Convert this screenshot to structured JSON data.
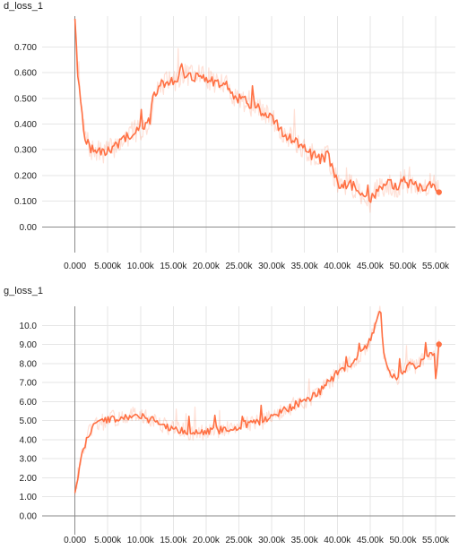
{
  "panels": [
    {
      "title": "d_loss_1"
    },
    {
      "title": "g_loss_1"
    }
  ],
  "colors": {
    "series": "#ff7043",
    "grid": "#e6e6e6",
    "axis": "#8a8a8a",
    "text": "#212121"
  },
  "chart_data": [
    {
      "type": "line",
      "title": "d_loss_1",
      "xlabel": "",
      "ylabel": "",
      "xlim": [
        -5000,
        58000
      ],
      "ylim": [
        -0.1,
        0.82
      ],
      "xticks": [
        0,
        5000,
        10000,
        15000,
        20000,
        25000,
        30000,
        35000,
        40000,
        45000,
        50000,
        55000
      ],
      "xtick_labels": [
        "0.000",
        "5.000k",
        "10.00k",
        "15.00k",
        "20.00k",
        "25.00k",
        "30.00k",
        "35.00k",
        "40.00k",
        "45.00k",
        "50.00k",
        "55.00k"
      ],
      "yticks": [
        0,
        0.1,
        0.2,
        0.3,
        0.4,
        0.5,
        0.6,
        0.7
      ],
      "ytick_labels": [
        "0.00",
        "0.100",
        "0.200",
        "0.300",
        "0.400",
        "0.500",
        "0.600",
        "0.700"
      ],
      "grid": true,
      "series": [
        {
          "x": [
            0,
            300,
            600,
            1000,
            1500,
            2000,
            2500,
            3000,
            4000,
            5000,
            6000,
            7000,
            8000,
            9000,
            10000,
            11000,
            11500,
            12000,
            13000,
            14000,
            15000,
            16000,
            17000,
            18000,
            19000,
            20000,
            21000,
            22000,
            23000,
            24000,
            25000,
            26000,
            27000,
            28000,
            29000,
            30000,
            31000,
            32000,
            33000,
            34000,
            35000,
            36000,
            37000,
            38000,
            38500,
            39000,
            40000,
            41000,
            42000,
            43000,
            44000,
            45000,
            46000,
            47000,
            48000,
            49000,
            50000,
            51000,
            52000,
            53000,
            54000,
            55000,
            55500
          ],
          "y": [
            0.82,
            0.65,
            0.55,
            0.45,
            0.36,
            0.32,
            0.3,
            0.29,
            0.29,
            0.3,
            0.31,
            0.33,
            0.35,
            0.37,
            0.38,
            0.4,
            0.42,
            0.52,
            0.55,
            0.56,
            0.57,
            0.58,
            0.6,
            0.58,
            0.6,
            0.58,
            0.57,
            0.56,
            0.55,
            0.52,
            0.5,
            0.49,
            0.47,
            0.46,
            0.44,
            0.42,
            0.39,
            0.36,
            0.34,
            0.32,
            0.3,
            0.28,
            0.27,
            0.26,
            0.3,
            0.24,
            0.17,
            0.16,
            0.17,
            0.14,
            0.12,
            0.1,
            0.14,
            0.16,
            0.17,
            0.15,
            0.18,
            0.17,
            0.16,
            0.15,
            0.17,
            0.16,
            0.135
          ]
        }
      ]
    },
    {
      "type": "line",
      "title": "g_loss_1",
      "xlabel": "",
      "ylabel": "",
      "xlim": [
        -5000,
        58000
      ],
      "ylim": [
        -1,
        11
      ],
      "xticks": [
        0,
        5000,
        10000,
        15000,
        20000,
        25000,
        30000,
        35000,
        40000,
        45000,
        50000,
        55000
      ],
      "xtick_labels": [
        "0.000",
        "5.000k",
        "10.00k",
        "15.00k",
        "20.00k",
        "25.00k",
        "30.00k",
        "35.00k",
        "40.00k",
        "45.00k",
        "50.00k",
        "55.00k"
      ],
      "yticks": [
        0,
        1,
        2,
        3,
        4,
        5,
        6,
        7,
        8,
        9,
        10
      ],
      "ytick_labels": [
        "0.00",
        "1.00",
        "2.00",
        "3.00",
        "4.00",
        "5.00",
        "6.00",
        "7.00",
        "8.00",
        "9.00",
        "10.0"
      ],
      "grid": true,
      "series": [
        {
          "x": [
            0,
            500,
            1000,
            1500,
            2000,
            2500,
            3000,
            4000,
            5000,
            6000,
            7000,
            8000,
            9000,
            10000,
            11000,
            12000,
            13000,
            14000,
            15000,
            16000,
            17000,
            18000,
            19000,
            20000,
            21000,
            22000,
            23000,
            24000,
            25000,
            26000,
            27000,
            28000,
            29000,
            30000,
            31000,
            32000,
            33000,
            34000,
            35000,
            36000,
            37000,
            38000,
            39000,
            40000,
            41000,
            42000,
            43000,
            44000,
            45000,
            46000,
            46500,
            47000,
            48000,
            49000,
            50000,
            51000,
            52000,
            53000,
            54000,
            54800,
            55000,
            55500
          ],
          "y": [
            1.3,
            2.2,
            3.0,
            3.7,
            4.2,
            4.5,
            4.7,
            4.9,
            5.0,
            5.1,
            5.2,
            5.2,
            5.3,
            5.2,
            5.1,
            5.0,
            4.8,
            4.7,
            4.6,
            4.5,
            4.4,
            4.4,
            4.3,
            4.4,
            4.5,
            4.5,
            4.6,
            4.6,
            4.7,
            4.8,
            4.8,
            4.9,
            5.0,
            5.2,
            5.4,
            5.6,
            5.7,
            5.9,
            6.0,
            6.2,
            6.4,
            6.8,
            7.1,
            7.5,
            7.7,
            8.0,
            8.3,
            8.7,
            9.3,
            10.2,
            11.0,
            8.8,
            7.5,
            7.1,
            7.6,
            7.9,
            7.8,
            8.2,
            8.4,
            8.6,
            7.2,
            9.0
          ]
        }
      ]
    }
  ]
}
